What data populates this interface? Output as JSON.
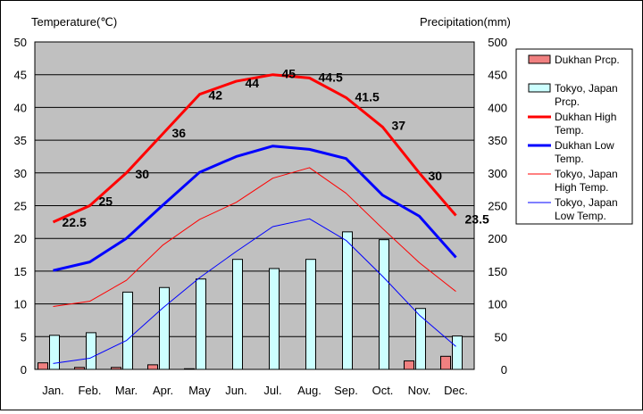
{
  "chart_data": {
    "type": "bar",
    "y_left_title": "Temperature(℃)",
    "y_right_title": "Precipitation(mm)",
    "categories": [
      "Jan.",
      "Feb.",
      "Mar.",
      "Apr.",
      "May",
      "Jun.",
      "Jul.",
      "Aug.",
      "Sep.",
      "Oct.",
      "Nov.",
      "Dec."
    ],
    "y_left_ticks": [
      "0",
      "5",
      "10",
      "15",
      "20",
      "25",
      "30",
      "35",
      "40",
      "45",
      "50"
    ],
    "y_right_ticks": [
      "0",
      "50",
      "100",
      "150",
      "200",
      "250",
      "300",
      "350",
      "400",
      "450",
      "500"
    ],
    "ylim_left": [
      0,
      50
    ],
    "ylim_right": [
      0,
      500
    ],
    "grid": "horizontal",
    "legend_position": "right",
    "plot_background": "#c0c0c0",
    "bar_series": [
      {
        "name": "Dukhan Prcp.",
        "color": "#f08080",
        "axis": "right",
        "values": [
          10,
          3,
          3,
          7,
          1,
          0,
          0,
          0,
          0,
          0,
          13,
          20
        ]
      },
      {
        "name": "Tokyo, Japan Prcp.",
        "color": "#ccffff",
        "axis": "right",
        "values": [
          52,
          56,
          118,
          125,
          138,
          168,
          154,
          168,
          210,
          198,
          93,
          51
        ]
      }
    ],
    "line_series": [
      {
        "name": "Dukhan High Temp.",
        "color": "#ff0000",
        "width": 3,
        "axis": "left",
        "values": [
          22.5,
          25,
          30,
          36,
          42,
          44,
          45,
          44.5,
          41.5,
          37,
          30,
          23.5
        ],
        "labels": [
          "22.5",
          "25",
          "30",
          "36",
          "42",
          "44",
          "45",
          "44.5",
          "41.5",
          "37",
          "30",
          "23.5"
        ]
      },
      {
        "name": "Dukhan Low Temp.",
        "color": "#0000ff",
        "width": 3,
        "axis": "left",
        "values": [
          15.1,
          16.4,
          20.0,
          25.1,
          30.1,
          32.5,
          34.1,
          33.6,
          32.2,
          26.6,
          23.4,
          17.1
        ]
      },
      {
        "name": "Tokyo, Japan High Temp.",
        "color": "#ff0000",
        "width": 1,
        "axis": "left",
        "values": [
          9.6,
          10.4,
          13.6,
          19.0,
          22.9,
          25.5,
          29.2,
          30.8,
          26.9,
          21.5,
          16.3,
          11.9
        ]
      },
      {
        "name": "Tokyo, Japan Low Temp.",
        "color": "#0000ff",
        "width": 1,
        "axis": "left",
        "values": [
          0.9,
          1.7,
          4.4,
          9.4,
          14.0,
          18.0,
          21.8,
          23.0,
          19.7,
          14.2,
          8.3,
          3.5
        ]
      }
    ],
    "legend": [
      {
        "label_lines": [
          "Dukhan Prcp."
        ],
        "kind": "bar",
        "color": "#f08080"
      },
      {
        "label_lines": [
          "Tokyo, Japan",
          "Prcp."
        ],
        "kind": "bar",
        "color": "#ccffff"
      },
      {
        "label_lines": [
          "Dukhan High",
          "Temp."
        ],
        "kind": "line",
        "color": "#ff0000",
        "width": 3
      },
      {
        "label_lines": [
          "Dukhan Low",
          "Temp."
        ],
        "kind": "line",
        "color": "#0000ff",
        "width": 3
      },
      {
        "label_lines": [
          "Tokyo, Japan",
          "High Temp."
        ],
        "kind": "line",
        "color": "#ff0000",
        "width": 1
      },
      {
        "label_lines": [
          "Tokyo, Japan",
          "Low Temp."
        ],
        "kind": "line",
        "color": "#0000ff",
        "width": 1
      }
    ]
  }
}
